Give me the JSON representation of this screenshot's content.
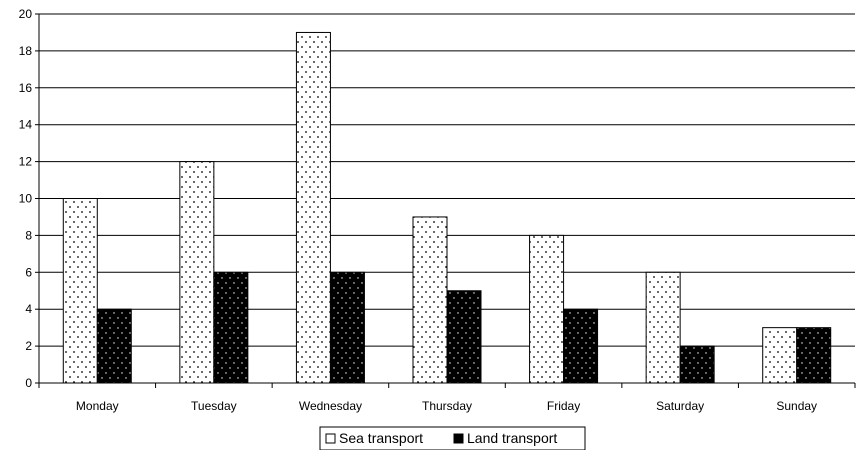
{
  "chart_data": {
    "type": "bar",
    "categories": [
      "Monday",
      "Tuesday",
      "Wednesday",
      "Thursday",
      "Friday",
      "Saturday",
      "Sunday"
    ],
    "series": [
      {
        "name": "Sea transport",
        "values": [
          10,
          12,
          19,
          9,
          8,
          6,
          3
        ],
        "color": "#ffffff",
        "pattern": "dots-black-on-white"
      },
      {
        "name": "Land transport",
        "values": [
          4,
          6,
          6,
          5,
          4,
          2,
          3
        ],
        "color": "#000000",
        "pattern": "dots-white-on-black"
      }
    ],
    "ylim": [
      0,
      20
    ],
    "yticks": [
      0,
      2,
      4,
      6,
      8,
      10,
      12,
      14,
      16,
      18,
      20
    ],
    "grid": true,
    "legend_position": "bottom-center",
    "title": "",
    "xlabel": "",
    "ylabel": ""
  }
}
